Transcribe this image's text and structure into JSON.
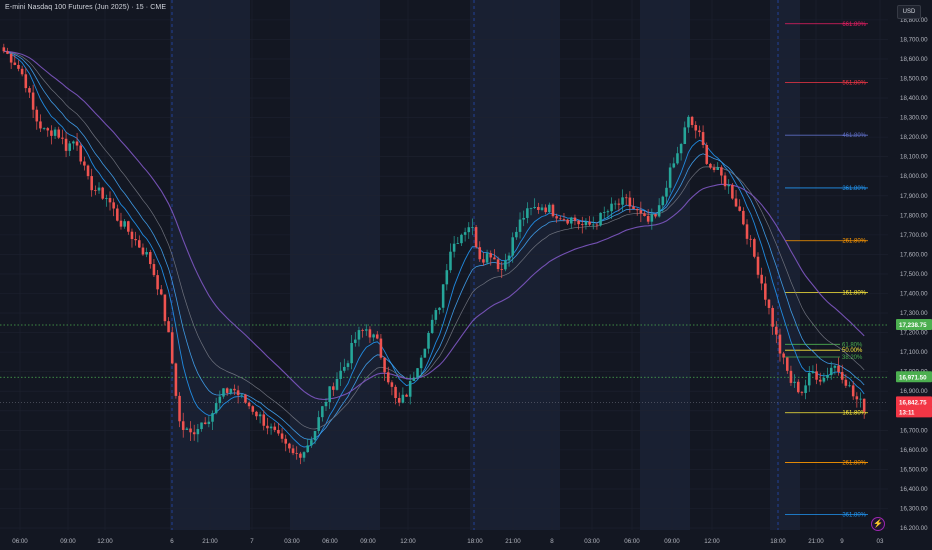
{
  "header": {
    "title": "E-mini Nasdaq 100 Futures (Jun 2025) · 15 · CME",
    "currency": "USD"
  },
  "price_axis": {
    "labels": [
      "18,800.00",
      "18,700.00",
      "18,600.00",
      "18,500.00",
      "18,400.00",
      "18,300.00",
      "18,200.00",
      "18,100.00",
      "18,000.00",
      "17,900.00",
      "17,800.00",
      "17,700.00",
      "17,600.00",
      "17,500.00",
      "17,400.00",
      "17,300.00",
      "17,200.00",
      "17,100.00",
      "17,000.00",
      "16,900.00",
      "16,800.00",
      "16,700.00",
      "16,600.00",
      "16,500.00",
      "16,400.00",
      "16,300.00",
      "16,200.00"
    ],
    "values": [
      18800,
      18700,
      18600,
      18500,
      18400,
      18300,
      18200,
      18100,
      18000,
      17900,
      17800,
      17700,
      17600,
      17500,
      17400,
      17300,
      17200,
      17100,
      17000,
      16900,
      16800,
      16700,
      16600,
      16500,
      16400,
      16300,
      16200
    ]
  },
  "time_axis": {
    "labels": [
      "06:00",
      "09:00",
      "12:00",
      "6",
      "21:00",
      "7",
      "03:00",
      "06:00",
      "09:00",
      "12:00",
      "18:00",
      "21:00",
      "8",
      "03:00",
      "06:00",
      "09:00",
      "12:00",
      "18:00",
      "21:00",
      "9",
      "03"
    ]
  },
  "price_badges": [
    {
      "label": "17,238.75",
      "value": 17238.75,
      "color": "#4caf50"
    },
    {
      "label": "16,971.50",
      "value": 16971.5,
      "color": "#4caf50"
    },
    {
      "label": "16,842.75",
      "value": 16842.75,
      "color": "#f23645"
    },
    {
      "label": "13:11",
      "value": 16812,
      "color": "#f23645"
    }
  ],
  "fib_levels": [
    {
      "label": "661.80%",
      "value": 18780,
      "color": "#e91e63"
    },
    {
      "label": "561.80%",
      "value": 18480,
      "color": "#f23645"
    },
    {
      "label": "461.80%",
      "value": 18210,
      "color": "#5c6bc0"
    },
    {
      "label": "361.80%",
      "value": 17940,
      "color": "#2196f3"
    },
    {
      "label": "261.80%",
      "value": 17670,
      "color": "#ff9800"
    },
    {
      "label": "161.80%",
      "value": 17405,
      "color": "#ffeb3b"
    },
    {
      "label": "61.80%",
      "value": 17140,
      "color": "#4caf50"
    },
    {
      "label": "50.00%",
      "value": 17110,
      "color": "#ffeb3b"
    },
    {
      "label": "38.20%",
      "value": 17075,
      "color": "#4caf50"
    },
    {
      "label": "161.80%",
      "value": 16790,
      "color": "#ffeb3b"
    },
    {
      "label": "261.80%",
      "value": 16535,
      "color": "#ff9800"
    },
    {
      "label": "361.80%",
      "value": 16270,
      "color": "#2196f3"
    }
  ],
  "colors": {
    "background": "#131722",
    "up": "#26a69a",
    "down": "#ef5350",
    "grid": "#1e2230",
    "session_band": "#192032",
    "ma_fast": "#2196f3",
    "ma_mid": "#42a5f5",
    "ma_slow": "#7e57c2",
    "ma_grey": "#787b86"
  },
  "icons": {
    "brand": "tradingview-lightning-icon"
  },
  "chart_data": {
    "type": "candlestick",
    "title": "E-mini Nasdaq 100 Futures (Jun 2025) · 15 · CME",
    "ylim": [
      16200,
      18800
    ],
    "price_path": [
      18640,
      18590,
      18500,
      18300,
      18220,
      18240,
      18150,
      18190,
      17980,
      17920,
      17890,
      17780,
      17720,
      17650,
      17580,
      17420,
      17150,
      16720,
      16680,
      16740,
      16780,
      16880,
      16920,
      16860,
      16810,
      16750,
      16690,
      16620,
      16570,
      16600,
      16700,
      16850,
      16960,
      17040,
      17180,
      17220,
      17150,
      16980,
      16820,
      16900,
      17060,
      17200,
      17340,
      17620,
      17700,
      17760,
      17580,
      17610,
      17520,
      17660,
      17790,
      17830,
      17850,
      17820,
      17790,
      17780,
      17740,
      17760,
      17810,
      17850,
      17870,
      17820,
      17760,
      17790,
      17980,
      18110,
      18290,
      18220,
      18060,
      18010,
      17940,
      17820,
      17660,
      17480,
      17280,
      17080,
      16940,
      16900,
      17000,
      16960,
      17040,
      16980,
      16870,
      16820
    ],
    "current_price": 16842.75,
    "fib_levels_pct": [
      "661.80%",
      "561.80%",
      "461.80%",
      "361.80%",
      "261.80%",
      "161.80%",
      "61.80%",
      "50.00%",
      "38.20%",
      "161.80%",
      "261.80%",
      "361.80%"
    ]
  }
}
